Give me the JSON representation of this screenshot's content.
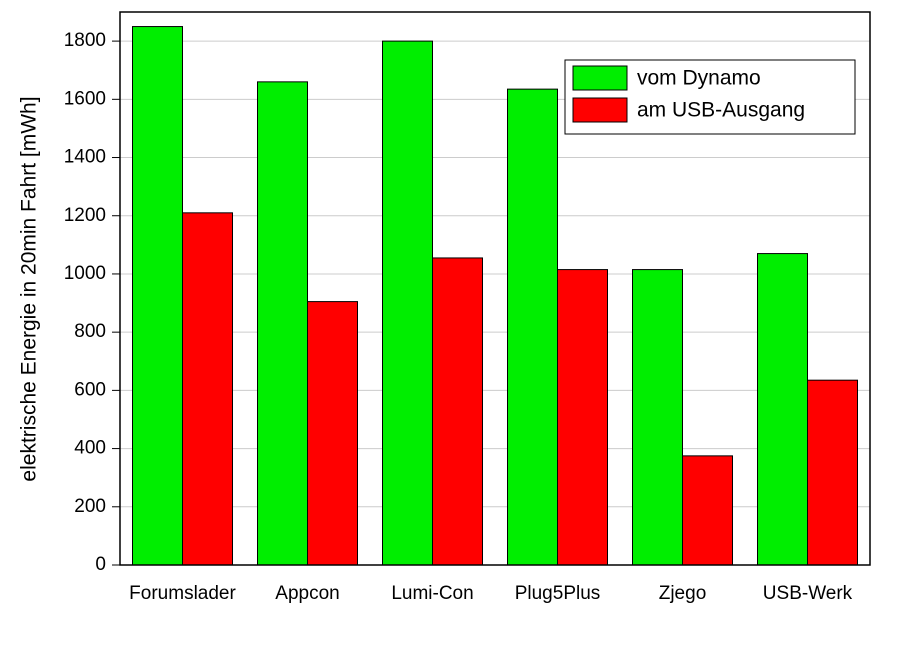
{
  "chart_data": {
    "type": "bar",
    "y_label": "elektrische Energie in 20min Fahrt [mWh]",
    "categories": [
      "Forumslader",
      "Appcon",
      "Lumi-Con",
      "Plug5Plus",
      "Zjego",
      "USB-Werk"
    ],
    "series": [
      {
        "name": "vom Dynamo",
        "color": "#00ee00",
        "values": [
          1850,
          1660,
          1800,
          1635,
          1015,
          1070
        ]
      },
      {
        "name": "am USB-Ausgang",
        "color": "#ff0000",
        "values": [
          1210,
          905,
          1055,
          1015,
          375,
          635
        ]
      }
    ],
    "ylim": [
      0,
      1900
    ],
    "yticks": [
      0,
      200,
      400,
      600,
      800,
      1000,
      1200,
      1400,
      1600,
      1800
    ],
    "grid": true,
    "legend": "upper-right"
  }
}
